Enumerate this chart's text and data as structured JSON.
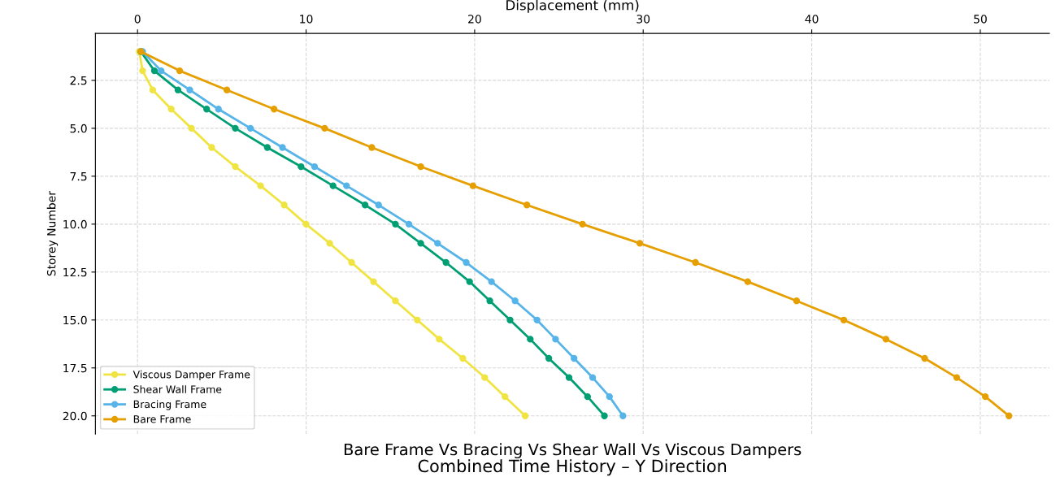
{
  "chart_data": {
    "type": "line",
    "title": "Combined Time History – Y Direction",
    "subtitle": "Bare Frame Vs Bracing Vs Shear Wall Vs Viscous Dampers",
    "xlabel": "Displacement (mm)",
    "ylabel": "Storey Number",
    "series": [
      {
        "name": "Viscous Damper Frame",
        "color": "#f0e442",
        "x": [
          0.1,
          0.3,
          0.9,
          2.0,
          3.2,
          4.4,
          5.8,
          7.3,
          8.7,
          10.0,
          11.4,
          12.7,
          14.0,
          15.3,
          16.6,
          17.9,
          19.3,
          20.6,
          21.8,
          23.0
        ],
        "values": [
          1,
          2,
          3,
          4,
          5,
          6,
          7,
          8,
          9,
          10,
          11,
          12,
          13,
          14,
          15,
          16,
          17,
          18,
          19,
          20
        ]
      },
      {
        "name": "Shear Wall Frame",
        "color": "#009e73",
        "x": [
          0.2,
          1.0,
          2.4,
          4.1,
          5.8,
          7.7,
          9.7,
          11.6,
          13.5,
          15.3,
          16.8,
          18.3,
          19.7,
          20.9,
          22.1,
          23.3,
          24.4,
          25.6,
          26.7,
          27.7
        ],
        "values": [
          1,
          2,
          3,
          4,
          5,
          6,
          7,
          8,
          9,
          10,
          11,
          12,
          13,
          14,
          15,
          16,
          17,
          18,
          19,
          20
        ]
      },
      {
        "name": "Bracing Frame",
        "color": "#56b4e9",
        "x": [
          0.3,
          1.4,
          3.1,
          4.8,
          6.7,
          8.6,
          10.5,
          12.4,
          14.3,
          16.1,
          17.8,
          19.5,
          21.0,
          22.4,
          23.7,
          24.8,
          25.9,
          27.0,
          28.0,
          28.8
        ],
        "values": [
          1,
          2,
          3,
          4,
          5,
          6,
          7,
          8,
          9,
          10,
          11,
          12,
          13,
          14,
          15,
          16,
          17,
          18,
          19,
          20
        ]
      },
      {
        "name": "Bare Frame",
        "color": "#e69f00",
        "x": [
          0.2,
          2.5,
          5.3,
          8.1,
          11.1,
          13.9,
          16.8,
          19.9,
          23.1,
          26.4,
          29.8,
          33.1,
          36.2,
          39.1,
          41.9,
          44.4,
          46.7,
          48.6,
          50.3,
          51.7
        ],
        "values": [
          1,
          2,
          3,
          4,
          5,
          6,
          7,
          8,
          9,
          10,
          11,
          12,
          13,
          14,
          15,
          16,
          17,
          18,
          19,
          20
        ]
      }
    ],
    "xlim": [
      -2.5,
      54.1
    ],
    "xticks": [
      0,
      10,
      20,
      30,
      40,
      50
    ],
    "ylim": [
      20.95,
      0.05
    ],
    "yticks": [
      {
        "value": 2.5,
        "label": "2.5"
      },
      {
        "value": 5,
        "label": "5.0"
      },
      {
        "value": 7.5,
        "label": "7.5"
      },
      {
        "value": 10,
        "label": "10.0"
      },
      {
        "value": 12.5,
        "label": "12.5"
      },
      {
        "value": 15,
        "label": "15.0"
      },
      {
        "value": 17.5,
        "label": "17.5"
      },
      {
        "value": 20,
        "label": "20.0"
      }
    ],
    "grid": true,
    "legend": "bottom left",
    "marker": "circle",
    "line_style": "solid"
  }
}
